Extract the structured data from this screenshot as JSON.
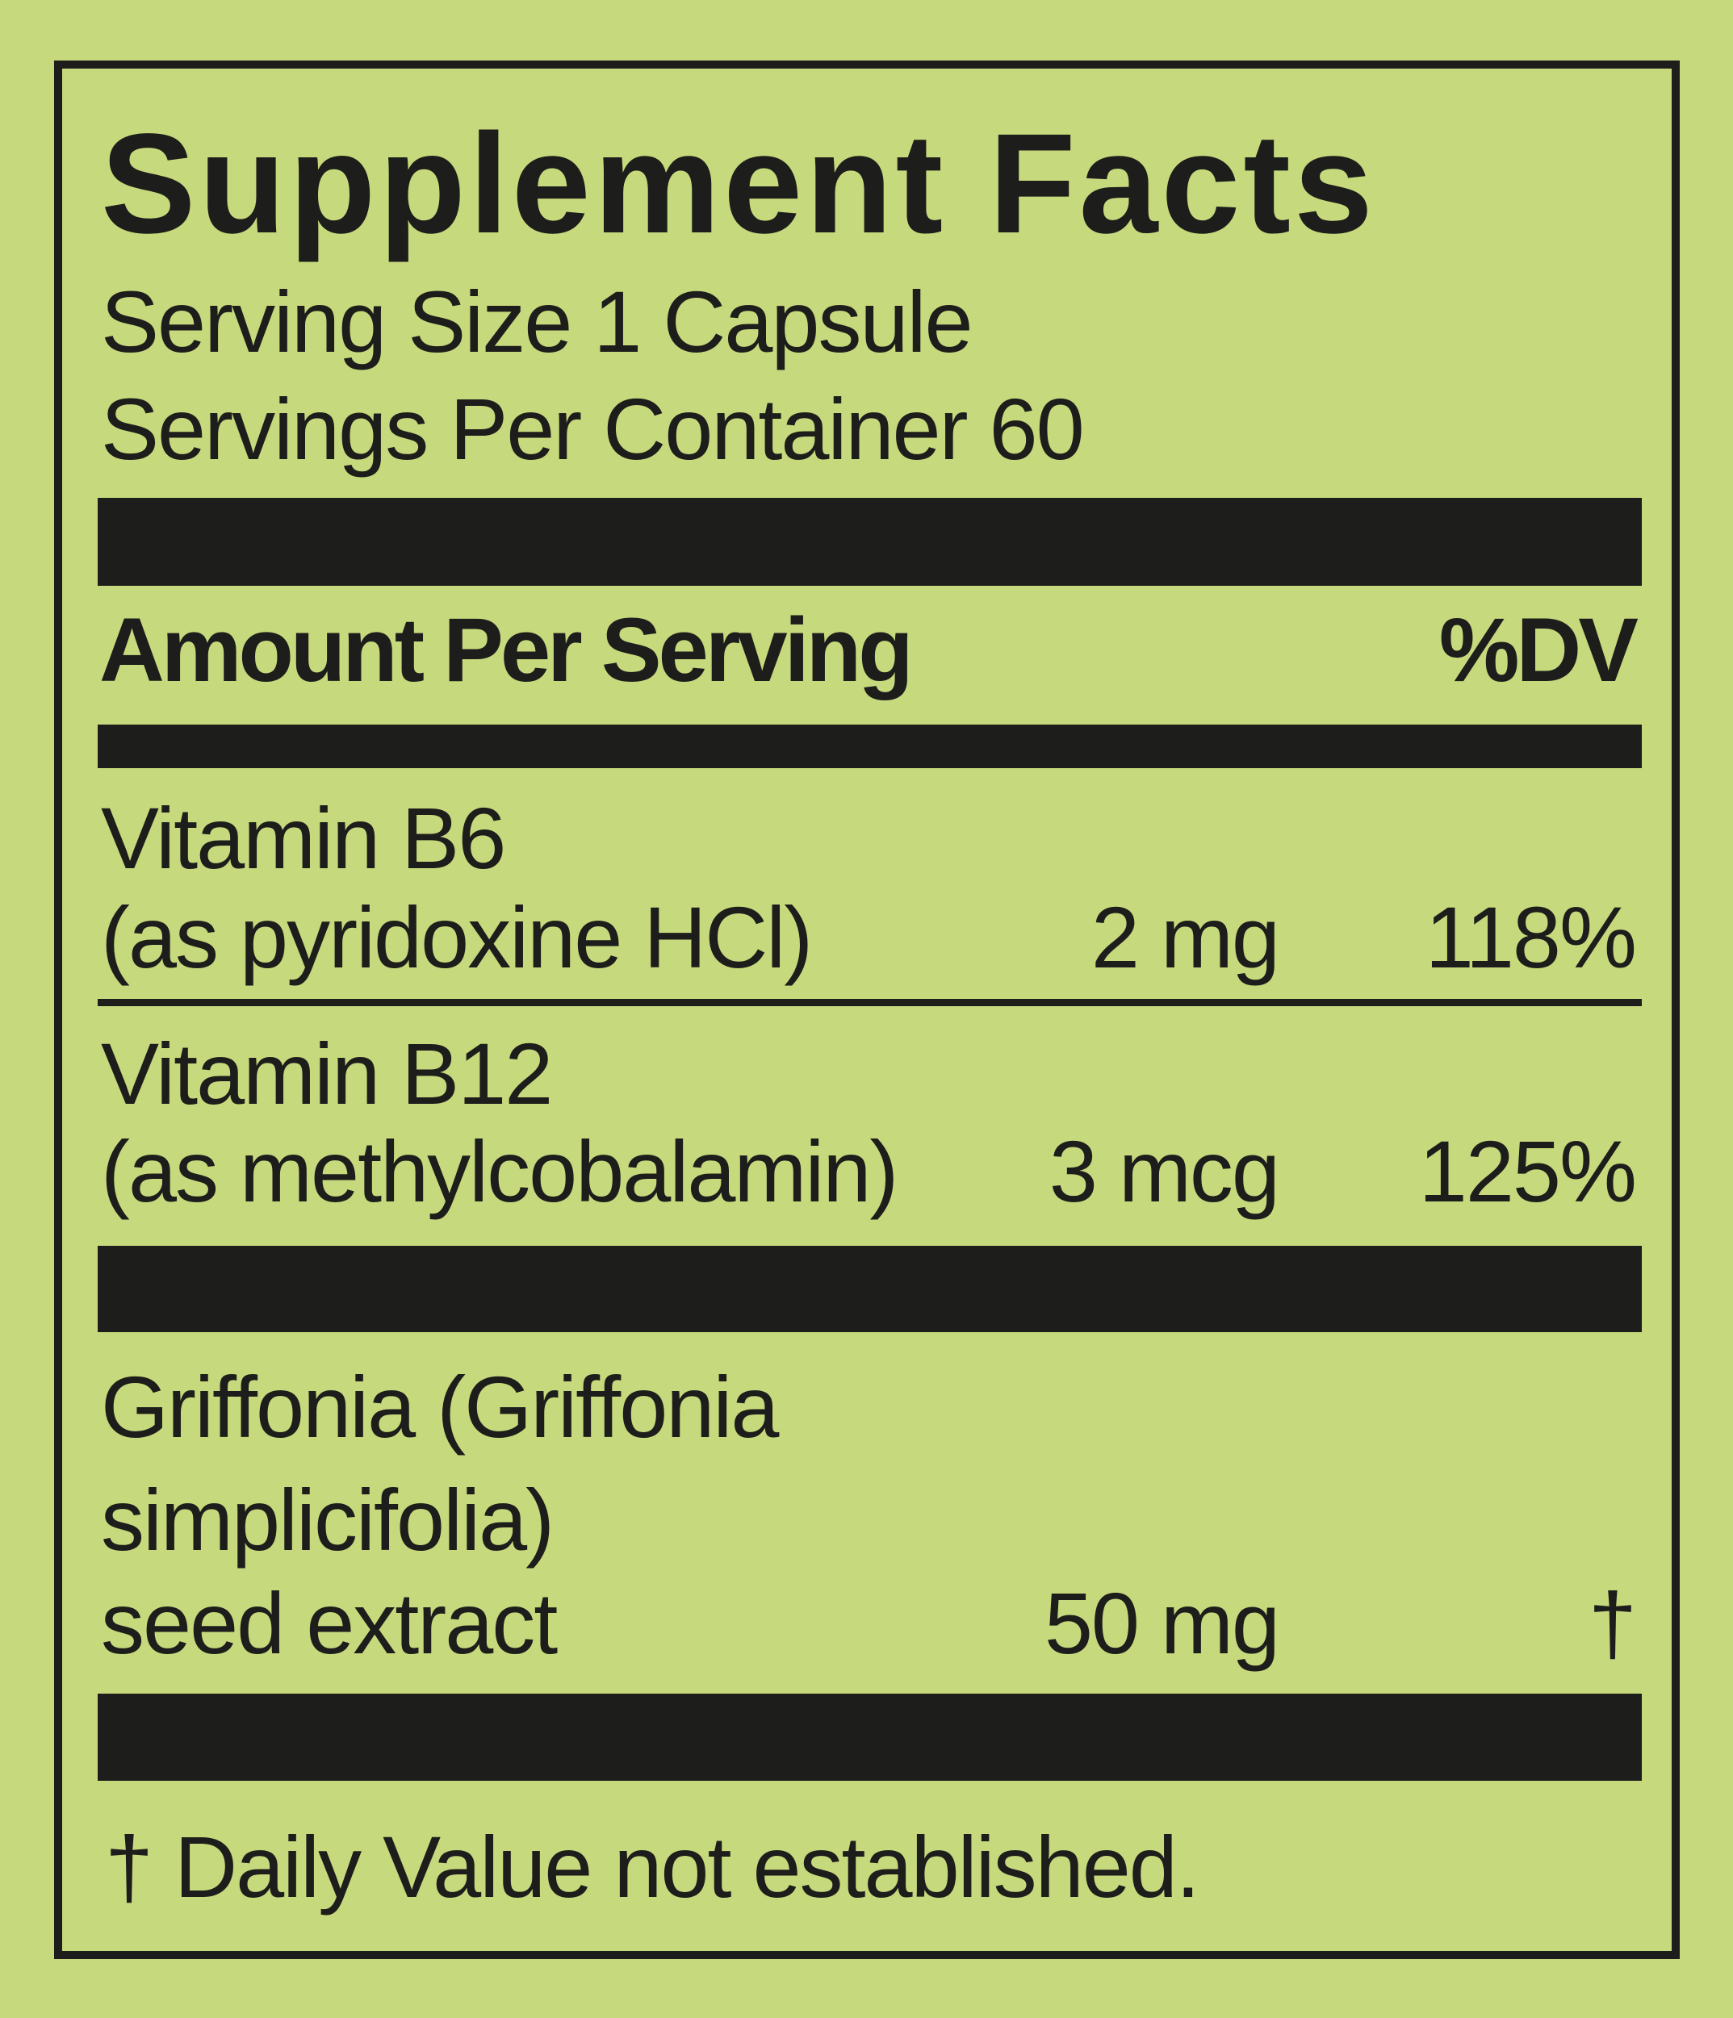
{
  "title": "Supplement Facts",
  "serving_size": "Serving Size 1 Capsule",
  "servings_per_container": "Servings Per Container 60",
  "header": {
    "amount_label": "Amount Per Serving",
    "dv_label": "%DV"
  },
  "nutrients": [
    {
      "name_line1": "Vitamin B6",
      "name_line2": "(as pyridoxine HCl)",
      "amount": "2 mg",
      "dv": "118%"
    },
    {
      "name_line1": "Vitamin B12",
      "name_line2": "(as methylcobalamin)",
      "amount": "3 mcg",
      "dv": "125%"
    },
    {
      "name_line1": "Griffonia (Griffonia",
      "name_line2": "simplicifolia)",
      "name_line3": "seed extract",
      "amount": "50 mg",
      "dv": "†"
    }
  ],
  "footnote": "† Daily Value not established.",
  "colors": {
    "background": "#c6d97c",
    "ink": "#1d1d1b"
  }
}
